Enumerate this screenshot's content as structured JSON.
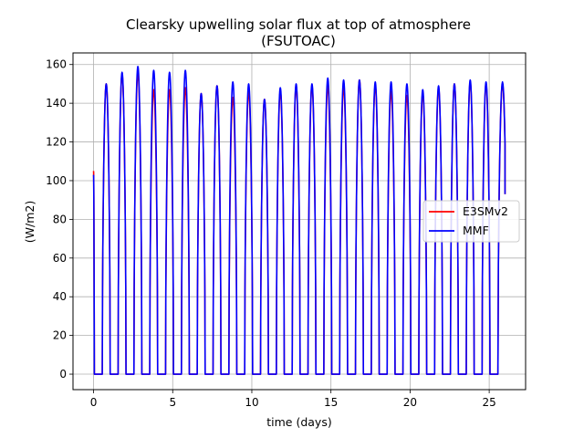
{
  "chart_data": {
    "type": "line",
    "title_line1": "Clearsky upwelling solar flux at top of atmosphere",
    "title_line2": "(FSUTOAC)",
    "xlabel": "time (days)",
    "ylabel": "(W/m2)",
    "xlim": [
      -1.3,
      27.3
    ],
    "ylim": [
      -8,
      166
    ],
    "xticks": [
      0,
      5,
      10,
      15,
      20,
      25
    ],
    "yticks": [
      0,
      20,
      40,
      60,
      80,
      100,
      120,
      140,
      160
    ],
    "grid": true,
    "legend_position": "center-right",
    "series": [
      {
        "name": "E3SMv2",
        "color": "#ff0000",
        "initial_value": 105,
        "end_day": 26.0,
        "end_value": 93,
        "daily_peaks": [
          150,
          155,
          156,
          147,
          147,
          148,
          145,
          149,
          143,
          146,
          142,
          146,
          149,
          149,
          149,
          148,
          152,
          149,
          146,
          144,
          145,
          148,
          150,
          151,
          150
        ]
      },
      {
        "name": "MMF",
        "color": "#0000ff",
        "initial_value": 103,
        "end_day": 26.0,
        "end_value": 93,
        "daily_peaks": [
          150,
          156,
          159,
          157,
          156,
          157,
          145,
          149,
          151,
          150,
          142,
          148,
          150,
          150,
          153,
          152,
          152,
          151,
          151,
          150,
          147,
          149,
          150,
          152,
          151
        ]
      }
    ]
  }
}
